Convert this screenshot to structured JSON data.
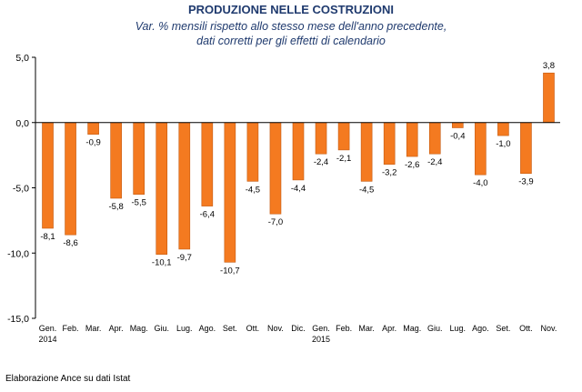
{
  "chart_data": {
    "type": "bar",
    "title": "PRODUZIONE NELLE COSTRUZIONI",
    "subtitle_lines": [
      "Var. % mensili rispetto allo stesso mese dell'anno precedente,",
      "dati corretti per gli effetti di calendario"
    ],
    "categories": [
      "Gen.",
      "Feb.",
      "Mar.",
      "Apr.",
      "Mag.",
      "Giu.",
      "Lug.",
      "Ago.",
      "Set.",
      "Ott.",
      "Nov.",
      "Dic.",
      "Gen.",
      "Feb.",
      "Mar.",
      "Apr.",
      "Mag.",
      "Giu.",
      "Lug.",
      "Ago.",
      "Set.",
      "Ott.",
      "Nov."
    ],
    "year_labels": [
      {
        "index": 0,
        "label": "2014"
      },
      {
        "index": 12,
        "label": "2015"
      }
    ],
    "values": [
      -8.1,
      -8.6,
      -0.9,
      -5.8,
      -5.5,
      -10.1,
      -9.7,
      -6.4,
      -10.7,
      -4.5,
      -7.0,
      -4.4,
      -2.4,
      -2.1,
      -4.5,
      -3.2,
      -2.6,
      -2.4,
      -0.4,
      -4.0,
      -1.0,
      -3.9,
      3.8
    ],
    "value_labels": [
      "-8,1",
      "-8,6",
      "-0,9",
      "-5,8",
      "-5,5",
      "-10,1",
      "-9,7",
      "-6,4",
      "-10,7",
      "-4,5",
      "-7,0",
      "-4,4",
      "-2,4",
      "-2,1",
      "-4,5",
      "-3,2",
      "-2,6",
      "-2,4",
      "-0,4",
      "-4,0",
      "-1,0",
      "-3,9",
      "3,8"
    ],
    "ylim": [
      -15,
      5
    ],
    "yticks": [
      5,
      0,
      -5,
      -10,
      -15
    ],
    "ytick_labels": [
      "5,0",
      "0,0",
      "-5,0",
      "-10,0",
      "-15,0"
    ],
    "xlabel": "",
    "ylabel": "",
    "grid": false,
    "colors": {
      "bar": "#f47a20",
      "bar_edge": "#c45a10",
      "axis": "#000000",
      "title": "#1f3a6e"
    }
  },
  "footer": {
    "source": "Elaborazione Ance su dati Istat"
  }
}
